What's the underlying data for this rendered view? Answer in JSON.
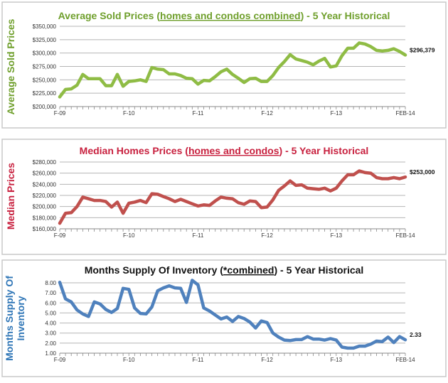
{
  "chart_data": [
    {
      "type": "line",
      "title_parts": [
        "Average Sold Prices (",
        "homes and condos combined",
        ") - 5 Year Historical"
      ],
      "title_color": "#6f9f2c",
      "ylabel": "Average Sold Prices",
      "xlabel": "",
      "line_color": "#8fbc45",
      "ylim": [
        200000,
        350000
      ],
      "ytick_step": 25000,
      "ytick_labels": [
        "$200,000",
        "$225,000",
        "$250,000",
        "$275,000",
        "$300,000",
        "$325,000",
        "$350,000"
      ],
      "xtick_labels": [
        {
          "index": 0,
          "label": "F-09"
        },
        {
          "index": 12,
          "label": "F-10"
        },
        {
          "index": 24,
          "label": "F-11"
        },
        {
          "index": 36,
          "label": "F-12"
        },
        {
          "index": 48,
          "label": "F-13"
        },
        {
          "index": 60,
          "label": "FEB-14"
        }
      ],
      "grid": true,
      "end_label": "$296,379",
      "values": [
        218000,
        232000,
        233000,
        240000,
        260000,
        252000,
        252000,
        252000,
        239000,
        239000,
        260000,
        238000,
        247000,
        248000,
        250000,
        247000,
        273000,
        270000,
        269000,
        261000,
        261000,
        258000,
        253000,
        252000,
        242000,
        249000,
        248000,
        256000,
        265000,
        270000,
        260000,
        253000,
        245000,
        252000,
        253000,
        247000,
        247000,
        258000,
        273000,
        284000,
        297000,
        289000,
        286000,
        283000,
        278000,
        285000,
        290000,
        274000,
        276000,
        295000,
        309000,
        309000,
        319000,
        317000,
        312000,
        305000,
        304000,
        305000,
        308000,
        303000,
        296379
      ]
    },
    {
      "type": "line",
      "title_parts": [
        "Median Homes Prices (",
        "homes and condos",
        ") - 5 Year Historical"
      ],
      "title_color": "#c8213f",
      "ylabel": "Median Prices",
      "xlabel": "",
      "line_color": "#c0504d",
      "ylim": [
        160000,
        280000
      ],
      "ytick_step": 20000,
      "ytick_labels": [
        "$160,000",
        "$180,000",
        "$200,000",
        "$220,000",
        "$240,000",
        "$260,000",
        "$280,000"
      ],
      "xtick_labels": [
        {
          "index": 0,
          "label": "F-09"
        },
        {
          "index": 12,
          "label": "F-10"
        },
        {
          "index": 24,
          "label": "F-11"
        },
        {
          "index": 36,
          "label": "F-12"
        },
        {
          "index": 48,
          "label": "F-13"
        },
        {
          "index": 60,
          "label": "FEB-14"
        }
      ],
      "grid": true,
      "end_label": "$253,000",
      "values": [
        170000,
        188000,
        189000,
        200000,
        217000,
        214000,
        211000,
        211000,
        209000,
        199000,
        208000,
        188000,
        206000,
        208000,
        211000,
        207000,
        223000,
        222000,
        218000,
        214000,
        209000,
        213000,
        209000,
        205000,
        201000,
        203000,
        202000,
        210000,
        217000,
        215000,
        214000,
        207000,
        204000,
        210000,
        209000,
        198000,
        199000,
        212000,
        229000,
        237000,
        246000,
        238000,
        239000,
        233000,
        232000,
        231000,
        233000,
        228000,
        233000,
        246000,
        257000,
        257000,
        264000,
        261000,
        260000,
        252000,
        250000,
        250000,
        252000,
        250000,
        253000
      ]
    },
    {
      "type": "line",
      "title_parts": [
        "Months Supply Of Inventory (",
        "*combined",
        ") - 5 Year Historical"
      ],
      "title_color": "#111111",
      "ylabel": "Months Supply Of Inventory",
      "ylabel_lines": [
        "Months Supply Of",
        "Inventory"
      ],
      "xlabel": "",
      "line_color": "#4f81bd",
      "ylabel_color": "#2e75b6",
      "ylim": [
        1,
        8
      ],
      "ytick_step": 1,
      "ytick_labels": [
        "1.00",
        "2.00",
        "3.00",
        "4.00",
        "5.00",
        "6.00",
        "7.00",
        "8.00"
      ],
      "xtick_labels": [
        {
          "index": 0,
          "label": "F-09"
        },
        {
          "index": 12,
          "label": "F-10"
        },
        {
          "index": 24,
          "label": "F-11"
        },
        {
          "index": 36,
          "label": "F-12"
        },
        {
          "index": 48,
          "label": "F-13"
        },
        {
          "index": 60,
          "label": "FEB-14"
        }
      ],
      "grid": true,
      "end_label": "2.33",
      "values": [
        8.05,
        6.4,
        6.1,
        5.3,
        4.9,
        4.65,
        6.1,
        5.9,
        5.35,
        5.05,
        5.45,
        7.45,
        7.35,
        5.5,
        4.95,
        4.9,
        5.6,
        7.2,
        7.5,
        7.7,
        7.5,
        7.45,
        6.05,
        8.25,
        7.8,
        5.5,
        5.2,
        4.8,
        4.4,
        4.6,
        4.15,
        4.65,
        4.45,
        4.1,
        3.5,
        4.2,
        4.05,
        3.0,
        2.6,
        2.3,
        2.25,
        2.35,
        2.35,
        2.65,
        2.4,
        2.4,
        2.3,
        2.45,
        2.3,
        1.6,
        1.5,
        1.5,
        1.7,
        1.7,
        1.9,
        2.2,
        2.15,
        2.6,
        2.05,
        2.65,
        2.33
      ]
    }
  ]
}
